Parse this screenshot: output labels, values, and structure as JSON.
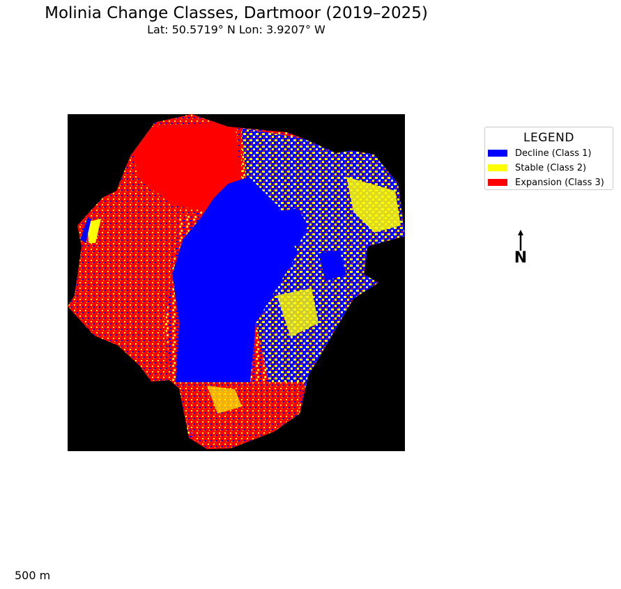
{
  "title": "Molinia Change Classes, Dartmoor (2019–2025)",
  "subtitle": "Lat: 50.5719° N   Lon: 3.9207° W",
  "legend": {
    "title": "LEGEND",
    "items": [
      {
        "label": "Decline (Class 1)",
        "color": "#0000ff"
      },
      {
        "label": "Stable (Class 2)",
        "color": "#ffff00"
      },
      {
        "label": "Expansion (Class 3)",
        "color": "#ff0000"
      }
    ]
  },
  "north_arrow": {
    "label": "N"
  },
  "scale_bar": {
    "label": "500 m"
  },
  "colors": {
    "background": "#000000",
    "decline": "#0000ff",
    "stable": "#ffff00",
    "expansion": "#ff0000"
  }
}
